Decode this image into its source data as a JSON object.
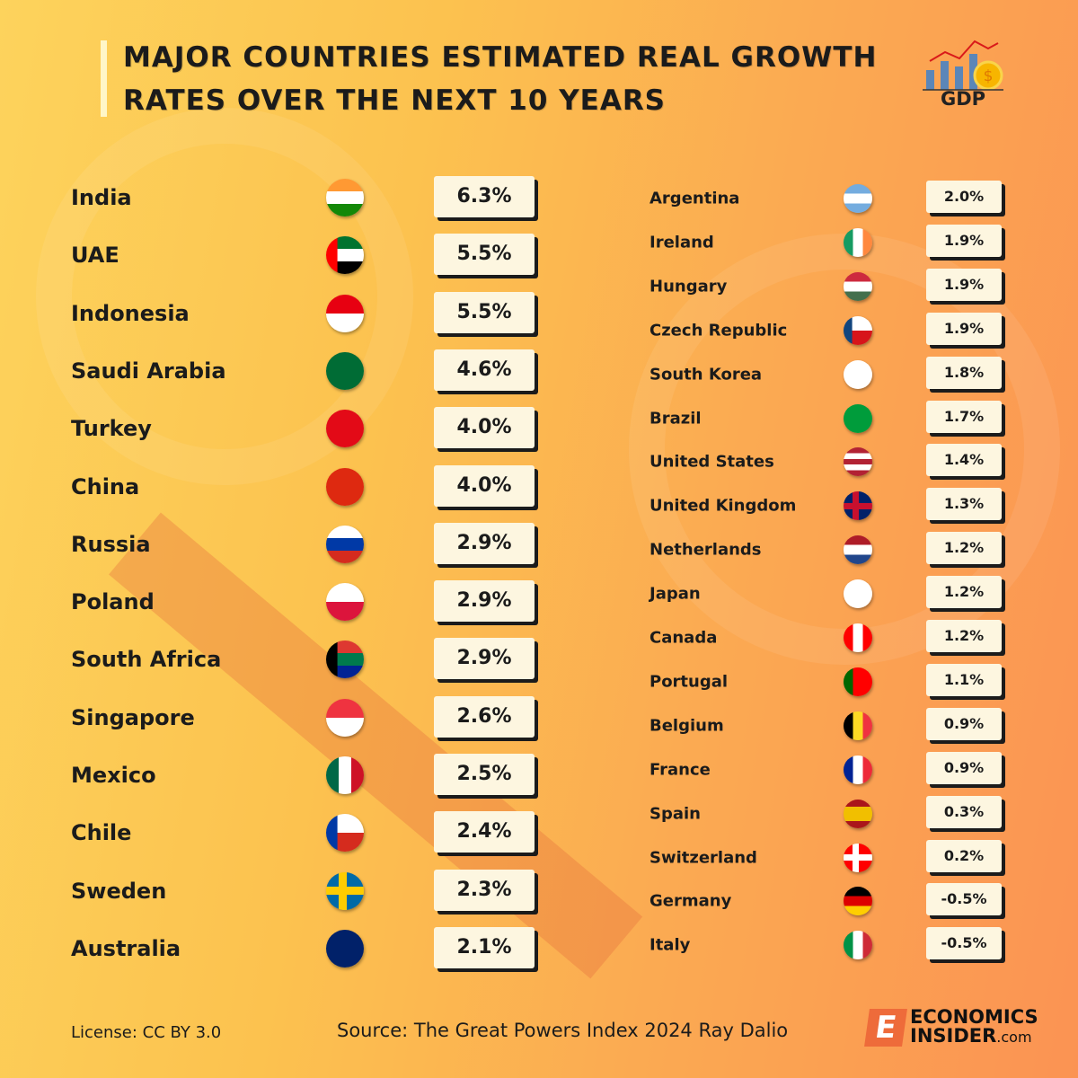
{
  "title": "MAJOR COUNTRIES ESTIMATED REAL GROWTH RATES OVER THE NEXT 10 YEARS",
  "gdp_icon": {
    "label": "GDP",
    "icon": "gdp-chart-coin-icon"
  },
  "colors": {
    "background_left": "#fdd35c",
    "background_right": "#fb9353",
    "value_box": "#fdf6e0",
    "text": "#1b1b1b"
  },
  "chart_data": {
    "type": "table",
    "title": "MAJOR COUNTRIES ESTIMATED REAL GROWTH RATES OVER THE NEXT 10 YEARS",
    "unit": "%",
    "left": [
      {
        "country": "India",
        "value": "6.3%",
        "flag": {
          "dir": "h",
          "colors": [
            "#ff9933",
            "#ffffff",
            "#138808"
          ]
        }
      },
      {
        "country": "UAE",
        "value": "5.5%",
        "flag": {
          "dir": "h",
          "colors": [
            "#00732f",
            "#ffffff",
            "#000000"
          ],
          "hoist": "#ff0000"
        }
      },
      {
        "country": "Indonesia",
        "value": "5.5%",
        "flag": {
          "dir": "h",
          "colors": [
            "#e70011",
            "#ffffff"
          ]
        }
      },
      {
        "country": "Saudi Arabia",
        "value": "4.6%",
        "flag": {
          "dir": "h",
          "colors": [
            "#006c35"
          ]
        }
      },
      {
        "country": "Turkey",
        "value": "4.0%",
        "flag": {
          "dir": "h",
          "colors": [
            "#e30a17"
          ]
        }
      },
      {
        "country": "China",
        "value": "4.0%",
        "flag": {
          "dir": "h",
          "colors": [
            "#de2910"
          ]
        }
      },
      {
        "country": "Russia",
        "value": "2.9%",
        "flag": {
          "dir": "h",
          "colors": [
            "#ffffff",
            "#0039a6",
            "#d52b1e"
          ]
        }
      },
      {
        "country": "Poland",
        "value": "2.9%",
        "flag": {
          "dir": "h",
          "colors": [
            "#ffffff",
            "#dc143c"
          ]
        }
      },
      {
        "country": "South Africa",
        "value": "2.9%",
        "flag": {
          "dir": "h",
          "colors": [
            "#de3831",
            "#007a4d",
            "#002395"
          ],
          "hoist": "#000000"
        }
      },
      {
        "country": "Singapore",
        "value": "2.6%",
        "flag": {
          "dir": "h",
          "colors": [
            "#ef3340",
            "#ffffff"
          ]
        }
      },
      {
        "country": "Mexico",
        "value": "2.5%",
        "flag": {
          "dir": "v",
          "colors": [
            "#006847",
            "#ffffff",
            "#ce1126"
          ]
        }
      },
      {
        "country": "Chile",
        "value": "2.4%",
        "flag": {
          "dir": "h",
          "colors": [
            "#ffffff",
            "#d52b1e"
          ],
          "hoist": "#0039a6"
        }
      },
      {
        "country": "Sweden",
        "value": "2.3%",
        "flag": {
          "dir": "h",
          "colors": [
            "#006aa7"
          ],
          "cross": "#fecc00"
        }
      },
      {
        "country": "Australia",
        "value": "2.1%",
        "flag": {
          "dir": "h",
          "colors": [
            "#012169"
          ]
        }
      }
    ],
    "right": [
      {
        "country": "Argentina",
        "value": "2.0%",
        "flag": {
          "dir": "h",
          "colors": [
            "#74acdf",
            "#ffffff",
            "#74acdf"
          ]
        }
      },
      {
        "country": "Ireland",
        "value": "1.9%",
        "flag": {
          "dir": "v",
          "colors": [
            "#169b62",
            "#ffffff",
            "#ff883e"
          ]
        }
      },
      {
        "country": "Hungary",
        "value": "1.9%",
        "flag": {
          "dir": "h",
          "colors": [
            "#cd2a3e",
            "#ffffff",
            "#436f4d"
          ]
        }
      },
      {
        "country": "Czech Republic",
        "value": "1.9%",
        "flag": {
          "dir": "h",
          "colors": [
            "#ffffff",
            "#d7141a"
          ],
          "hoist": "#11457e"
        }
      },
      {
        "country": "South Korea",
        "value": "1.8%",
        "flag": {
          "dir": "h",
          "colors": [
            "#ffffff"
          ]
        }
      },
      {
        "country": "Brazil",
        "value": "1.7%",
        "flag": {
          "dir": "h",
          "colors": [
            "#009c3b"
          ]
        }
      },
      {
        "country": "United States",
        "value": "1.4%",
        "flag": {
          "dir": "h",
          "colors": [
            "#b22234",
            "#ffffff",
            "#b22234",
            "#ffffff",
            "#b22234"
          ]
        }
      },
      {
        "country": "United Kingdom",
        "value": "1.3%",
        "flag": {
          "dir": "h",
          "colors": [
            "#012169"
          ],
          "cross": "#c8102e"
        }
      },
      {
        "country": "Netherlands",
        "value": "1.2%",
        "flag": {
          "dir": "h",
          "colors": [
            "#ae1c28",
            "#ffffff",
            "#21468b"
          ]
        }
      },
      {
        "country": "Japan",
        "value": "1.2%",
        "flag": {
          "dir": "h",
          "colors": [
            "#ffffff"
          ]
        }
      },
      {
        "country": "Canada",
        "value": "1.2%",
        "flag": {
          "dir": "v",
          "colors": [
            "#ff0000",
            "#ffffff",
            "#ff0000"
          ]
        }
      },
      {
        "country": "Portugal",
        "value": "1.1%",
        "flag": {
          "dir": "v",
          "colors": [
            "#006600",
            "#ff0000",
            "#ff0000"
          ]
        }
      },
      {
        "country": "Belgium",
        "value": "0.9%",
        "flag": {
          "dir": "v",
          "colors": [
            "#000000",
            "#fdda24",
            "#ef3340"
          ]
        }
      },
      {
        "country": "France",
        "value": "0.9%",
        "flag": {
          "dir": "v",
          "colors": [
            "#002395",
            "#ffffff",
            "#ed2939"
          ]
        }
      },
      {
        "country": "Spain",
        "value": "0.3%",
        "flag": {
          "dir": "h",
          "colors": [
            "#aa151b",
            "#f1bf00",
            "#f1bf00",
            "#aa151b"
          ]
        }
      },
      {
        "country": "Switzerland",
        "value": "0.2%",
        "flag": {
          "dir": "h",
          "colors": [
            "#ff0000"
          ],
          "cross": "#ffffff"
        }
      },
      {
        "country": "Germany",
        "value": "-0.5%",
        "flag": {
          "dir": "h",
          "colors": [
            "#000000",
            "#dd0000",
            "#ffce00"
          ]
        }
      },
      {
        "country": "Italy",
        "value": "-0.5%",
        "flag": {
          "dir": "v",
          "colors": [
            "#009246",
            "#ffffff",
            "#ce2b37"
          ]
        }
      }
    ]
  },
  "footer": {
    "license": "License: CC BY 3.0",
    "source": "Source: The Great Powers Index 2024 Ray Dalio"
  },
  "logo": {
    "line1": "ECONOMICS",
    "line2": "INSIDER",
    "suffix": ".com"
  }
}
